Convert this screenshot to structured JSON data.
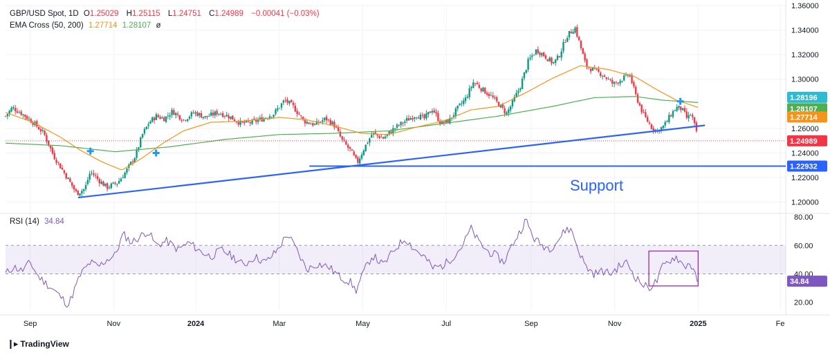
{
  "chart_data": [
    {
      "type": "candlestick",
      "symbol_line": {
        "symbol": "GBP/USD Spot, 1D",
        "open_label": "O",
        "open": "1.25029",
        "high_label": "H",
        "high": "1.25115",
        "low_label": "L",
        "low": "1.24751",
        "close_label": "C",
        "close": "1.24989",
        "change": "−0.00041 (−0.03%)"
      },
      "indicator_line": {
        "name": "EMA Cross (50, 200)",
        "ema50": "1.27714",
        "ema200": "1.28107",
        "suffix": "ø"
      },
      "y_ticks": [
        "1.36000",
        "1.34000",
        "1.32000",
        "1.30000",
        "1.26000",
        "1.24000",
        "1.22000",
        "1.20000"
      ],
      "y_tick_values": [
        1.36,
        1.34,
        1.32,
        1.3,
        1.26,
        1.24,
        1.22,
        1.2
      ],
      "ylim": [
        1.1925,
        1.36
      ],
      "x_ticks": [
        "Sep",
        "Nov",
        "2024",
        "Mar",
        "May",
        "Jul",
        "Sep",
        "Nov",
        "2025",
        "Fe"
      ],
      "x_tick_days": [
        18,
        79,
        139,
        200,
        261,
        322,
        384,
        445,
        506,
        566
      ],
      "xlim_days": [
        0,
        570
      ],
      "price_badges": [
        {
          "label": "1.28196",
          "value": 1.28196,
          "color": "#2ebbd1"
        },
        {
          "label": "1.28107",
          "value": 1.28107,
          "color": "#4caf50"
        },
        {
          "label": "1.27714",
          "value": 1.27714,
          "color": "#f7931a"
        },
        {
          "label": "1.24989",
          "value": 1.24989,
          "color": "#f23645"
        },
        {
          "label": "1.22932",
          "value": 1.22932,
          "color": "#2962ff"
        }
      ],
      "close_line_value": 1.24989,
      "support_level": 1.22932,
      "support_label": "Support",
      "trendline": {
        "start": [
          53,
          1.2037
        ],
        "end": [
          511,
          1.2625
        ]
      },
      "support_line_start_day": 222,
      "cross_markers": [
        {
          "day": 62,
          "value": 1.2415
        },
        {
          "day": 110,
          "value": 1.24
        },
        {
          "day": 493,
          "value": 1.282
        }
      ],
      "price_anchors": [
        [
          0,
          1.27
        ],
        [
          5,
          1.277
        ],
        [
          12,
          1.272
        ],
        [
          20,
          1.265
        ],
        [
          28,
          1.256
        ],
        [
          35,
          1.238
        ],
        [
          45,
          1.22
        ],
        [
          52,
          1.207
        ],
        [
          58,
          1.211
        ],
        [
          62,
          1.225
        ],
        [
          68,
          1.218
        ],
        [
          74,
          1.212
        ],
        [
          82,
          1.216
        ],
        [
          88,
          1.225
        ],
        [
          95,
          1.238
        ],
        [
          100,
          1.255
        ],
        [
          105,
          1.265
        ],
        [
          110,
          1.27
        ],
        [
          116,
          1.268
        ],
        [
          122,
          1.274
        ],
        [
          130,
          1.267
        ],
        [
          138,
          1.273
        ],
        [
          146,
          1.269
        ],
        [
          155,
          1.273
        ],
        [
          163,
          1.27
        ],
        [
          172,
          1.264
        ],
        [
          180,
          1.265
        ],
        [
          188,
          1.268
        ],
        [
          196,
          1.272
        ],
        [
          204,
          1.283
        ],
        [
          210,
          1.278
        ],
        [
          218,
          1.266
        ],
        [
          226,
          1.263
        ],
        [
          234,
          1.268
        ],
        [
          240,
          1.263
        ],
        [
          246,
          1.25
        ],
        [
          252,
          1.242
        ],
        [
          257,
          1.232
        ],
        [
          262,
          1.244
        ],
        [
          268,
          1.256
        ],
        [
          276,
          1.252
        ],
        [
          284,
          1.26
        ],
        [
          292,
          1.266
        ],
        [
          300,
          1.271
        ],
        [
          306,
          1.268
        ],
        [
          312,
          1.276
        ],
        [
          318,
          1.264
        ],
        [
          324,
          1.266
        ],
        [
          330,
          1.276
        ],
        [
          336,
          1.284
        ],
        [
          342,
          1.298
        ],
        [
          348,
          1.292
        ],
        [
          354,
          1.287
        ],
        [
          360,
          1.28
        ],
        [
          366,
          1.272
        ],
        [
          370,
          1.28
        ],
        [
          376,
          1.294
        ],
        [
          382,
          1.315
        ],
        [
          388,
          1.324
        ],
        [
          394,
          1.319
        ],
        [
          400,
          1.313
        ],
        [
          404,
          1.318
        ],
        [
          410,
          1.335
        ],
        [
          416,
          1.342
        ],
        [
          420,
          1.327
        ],
        [
          424,
          1.311
        ],
        [
          430,
          1.307
        ],
        [
          436,
          1.304
        ],
        [
          444,
          1.296
        ],
        [
          450,
          1.3
        ],
        [
          456,
          1.304
        ],
        [
          460,
          1.288
        ],
        [
          466,
          1.271
        ],
        [
          472,
          1.261
        ],
        [
          476,
          1.258
        ],
        [
          481,
          1.262
        ],
        [
          486,
          1.271
        ],
        [
          490,
          1.277
        ],
        [
          494,
          1.276
        ],
        [
          498,
          1.268
        ],
        [
          501,
          1.272
        ],
        [
          504,
          1.26
        ],
        [
          506,
          1.2499
        ]
      ],
      "ema50_anchors": [
        [
          0,
          1.273
        ],
        [
          20,
          1.265
        ],
        [
          40,
          1.253
        ],
        [
          55,
          1.242
        ],
        [
          70,
          1.233
        ],
        [
          85,
          1.226
        ],
        [
          100,
          1.236
        ],
        [
          115,
          1.248
        ],
        [
          130,
          1.258
        ],
        [
          150,
          1.265
        ],
        [
          175,
          1.266
        ],
        [
          200,
          1.269
        ],
        [
          220,
          1.267
        ],
        [
          240,
          1.262
        ],
        [
          260,
          1.256
        ],
        [
          280,
          1.255
        ],
        [
          300,
          1.261
        ],
        [
          320,
          1.266
        ],
        [
          340,
          1.275
        ],
        [
          360,
          1.278
        ],
        [
          380,
          1.289
        ],
        [
          400,
          1.301
        ],
        [
          420,
          1.311
        ],
        [
          440,
          1.308
        ],
        [
          460,
          1.302
        ],
        [
          475,
          1.292
        ],
        [
          490,
          1.283
        ],
        [
          506,
          1.2771
        ]
      ],
      "ema200_anchors": [
        [
          0,
          1.248
        ],
        [
          40,
          1.246
        ],
        [
          80,
          1.241
        ],
        [
          120,
          1.245
        ],
        [
          160,
          1.251
        ],
        [
          200,
          1.255
        ],
        [
          240,
          1.256
        ],
        [
          280,
          1.258
        ],
        [
          320,
          1.264
        ],
        [
          360,
          1.27
        ],
        [
          400,
          1.278
        ],
        [
          430,
          1.285
        ],
        [
          460,
          1.286
        ],
        [
          480,
          1.283
        ],
        [
          506,
          1.2811
        ]
      ]
    },
    {
      "type": "line",
      "title": "RSI (14)",
      "value": "34.84",
      "y_ticks": [
        "80.00",
        "60.00",
        "40.00",
        "20.00"
      ],
      "y_tick_values": [
        80,
        60,
        40,
        20
      ],
      "ylim": [
        14,
        81
      ],
      "band": [
        40,
        60
      ],
      "band_lines": [
        60,
        40
      ],
      "value_badge": {
        "label": "34.84",
        "value": 34.84,
        "color": "#7e57c2"
      },
      "highlight_box": {
        "days": [
          470,
          506
        ],
        "values": [
          31.5,
          56
        ]
      },
      "rsi_anchors": [
        [
          0,
          40
        ],
        [
          6,
          45
        ],
        [
          12,
          42
        ],
        [
          18,
          48
        ],
        [
          24,
          38
        ],
        [
          30,
          33
        ],
        [
          36,
          28
        ],
        [
          42,
          22
        ],
        [
          46,
          18
        ],
        [
          50,
          28
        ],
        [
          55,
          40
        ],
        [
          62,
          48
        ],
        [
          68,
          45
        ],
        [
          74,
          50
        ],
        [
          80,
          53
        ],
        [
          86,
          68
        ],
        [
          92,
          62
        ],
        [
          98,
          66
        ],
        [
          104,
          70
        ],
        [
          110,
          60
        ],
        [
          118,
          63
        ],
        [
          126,
          57
        ],
        [
          134,
          62
        ],
        [
          142,
          56
        ],
        [
          150,
          52
        ],
        [
          158,
          57
        ],
        [
          166,
          52
        ],
        [
          174,
          46
        ],
        [
          182,
          52
        ],
        [
          190,
          48
        ],
        [
          198,
          56
        ],
        [
          206,
          68
        ],
        [
          212,
          58
        ],
        [
          220,
          43
        ],
        [
          228,
          47
        ],
        [
          236,
          45
        ],
        [
          244,
          38
        ],
        [
          252,
          34
        ],
        [
          256,
          28
        ],
        [
          262,
          42
        ],
        [
          268,
          53
        ],
        [
          276,
          46
        ],
        [
          284,
          57
        ],
        [
          292,
          65
        ],
        [
          298,
          58
        ],
        [
          306,
          52
        ],
        [
          312,
          44
        ],
        [
          320,
          46
        ],
        [
          328,
          53
        ],
        [
          334,
          60
        ],
        [
          340,
          72
        ],
        [
          346,
          62
        ],
        [
          352,
          56
        ],
        [
          358,
          53
        ],
        [
          364,
          48
        ],
        [
          370,
          60
        ],
        [
          376,
          70
        ],
        [
          380,
          78
        ],
        [
          386,
          65
        ],
        [
          392,
          60
        ],
        [
          398,
          58
        ],
        [
          404,
          64
        ],
        [
          410,
          72
        ],
        [
          414,
          70
        ],
        [
          418,
          58
        ],
        [
          424,
          45
        ],
        [
          430,
          40
        ],
        [
          436,
          42
        ],
        [
          442,
          40
        ],
        [
          448,
          45
        ],
        [
          454,
          48
        ],
        [
          460,
          38
        ],
        [
          466,
          32
        ],
        [
          470,
          30
        ],
        [
          476,
          35
        ],
        [
          480,
          45
        ],
        [
          486,
          50
        ],
        [
          490,
          52
        ],
        [
          496,
          45
        ],
        [
          500,
          48
        ],
        [
          504,
          38
        ],
        [
          506,
          35
        ]
      ]
    }
  ],
  "branding": {
    "name": "TradingView",
    "logo": "tv-logo-icon"
  }
}
